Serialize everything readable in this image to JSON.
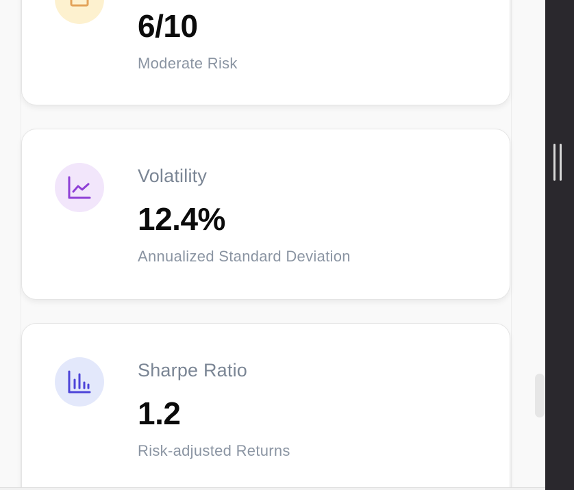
{
  "cards": [
    {
      "icon": "portfolio-icon",
      "icon_bg": "#fdf1cf",
      "icon_color": "#e3a35a",
      "value": "6/10",
      "subtitle": "Moderate Risk"
    },
    {
      "icon": "line-chart-icon",
      "icon_bg": "#f2e6fb",
      "icon_color": "#8e3fd6",
      "label": "Volatility",
      "value": "12.4%",
      "subtitle": "Annualized Standard Deviation"
    },
    {
      "icon": "bar-chart-icon",
      "icon_bg": "#e3e8fb",
      "icon_color": "#4c43d8",
      "label": "Sharpe Ratio",
      "value": "1.2",
      "subtitle": "Risk-adjusted Returns"
    }
  ],
  "colors": {
    "card_bg": "#ffffff",
    "page_bg": "#f9f9f9",
    "side_panel": "#2a282d"
  }
}
